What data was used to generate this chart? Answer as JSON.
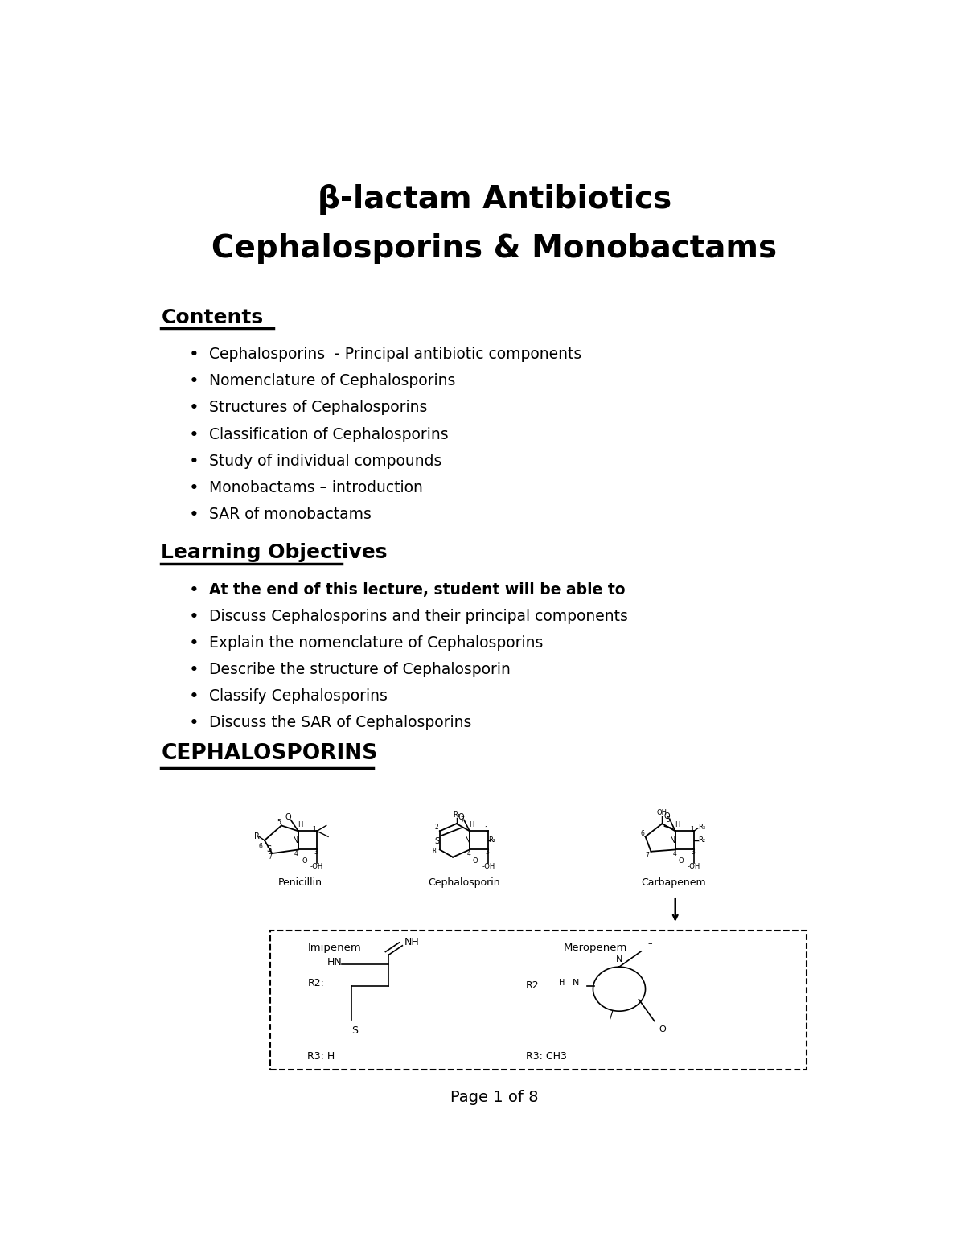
{
  "title_line1": "β-lactam Antibiotics",
  "title_line2": "Cephalosporins & Monobactams",
  "contents_header": "Contents",
  "contents_items": [
    "Cephalosporins  - Principal antibiotic components",
    "Nomenclature of Cephalosporins",
    "Structures of Cephalosporins",
    "Classification of Cephalosporins",
    "Study of individual compounds",
    "Monobactams – introduction",
    "SAR of monobactams"
  ],
  "learning_header": "Learning Objectives",
  "learning_items": [
    "At the end of this lecture, student will be able to",
    "Discuss Cephalosporins and their principal components",
    "Explain the nomenclature of Cephalosporins",
    "Describe the structure of Cephalosporin",
    "Classify Cephalosporins",
    "Discuss the SAR of Cephalosporins"
  ],
  "ceph_header": "CEPHALOSPORINS",
  "footer": "Page 1 of 8",
  "bg_color": "#ffffff",
  "text_color": "#000000",
  "title_fontsize": 28,
  "header_fontsize": 16,
  "item_fontsize": 13.5,
  "footer_fontsize": 14
}
